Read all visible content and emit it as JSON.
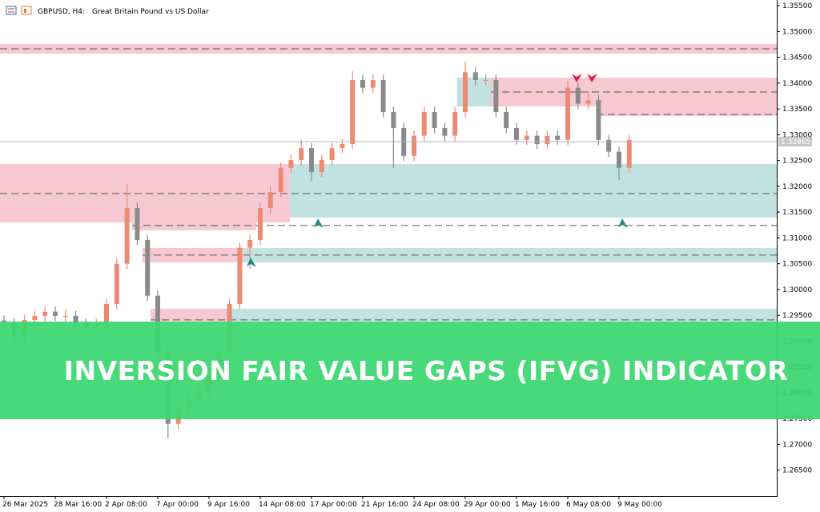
{
  "chart_data": {
    "type": "candlestick",
    "title": "GBPUSD, H4:",
    "subtitle": "Great Britain Pound vs US Dollar",
    "banner": "INVERSION FAIR VALUE GAPS (IFVG) INDICATOR",
    "up_color": "#ee8a74",
    "down_color": "#8a8a8a",
    "bull_zone_color": "#c2e1e1",
    "bear_zone_color": "#f6c8d1",
    "ylim": [
      1.26,
      1.3561
    ],
    "yticks": [
      {
        "value": 1.265,
        "label": "1.26500"
      },
      {
        "value": 1.27,
        "label": "1.27000"
      },
      {
        "value": 1.275,
        "label": "1.27500"
      },
      {
        "value": 1.28,
        "label": "1.28000"
      },
      {
        "value": 1.285,
        "label": "1.28500"
      },
      {
        "value": 1.29,
        "label": "1.29000"
      },
      {
        "value": 1.295,
        "label": "1.29500"
      },
      {
        "value": 1.3,
        "label": "1.30000"
      },
      {
        "value": 1.305,
        "label": "1.30500"
      },
      {
        "value": 1.31,
        "label": "1.31000"
      },
      {
        "value": 1.315,
        "label": "1.31500"
      },
      {
        "value": 1.32,
        "label": "1.32000"
      },
      {
        "value": 1.325,
        "label": "1.32500"
      },
      {
        "value": 1.33,
        "label": "1.33000"
      },
      {
        "value": 1.335,
        "label": "1.33500"
      },
      {
        "value": 1.34,
        "label": "1.34000"
      },
      {
        "value": 1.345,
        "label": "1.34500"
      },
      {
        "value": 1.35,
        "label": "1.35000"
      },
      {
        "value": 1.355,
        "label": "1.35500"
      }
    ],
    "xticks": [
      {
        "value": 0,
        "label": "26 Mar 2025"
      },
      {
        "value": 5,
        "label": "28 Mar 16:00"
      },
      {
        "value": 10,
        "label": "2 Apr 08:00"
      },
      {
        "value": 15,
        "label": "7 Apr 00:00"
      },
      {
        "value": 20,
        "label": "9 Apr 16:00"
      },
      {
        "value": 25,
        "label": "14 Apr 08:00"
      },
      {
        "value": 30,
        "label": "17 Apr 00:00"
      },
      {
        "value": 35,
        "label": "21 Apr 16:00"
      },
      {
        "value": 40,
        "label": "24 Apr 08:00"
      },
      {
        "value": 45,
        "label": "29 Apr 00:00"
      },
      {
        "value": 50,
        "label": "1 May 16:00"
      },
      {
        "value": 55,
        "label": "6 May 08:00"
      },
      {
        "value": 60,
        "label": "9 May 00:00"
      }
    ],
    "last_price": 1.32865,
    "zones": [
      {
        "kind": "bear",
        "top": 1.34757,
        "bottom": 1.34571,
        "from": -0.4
      },
      {
        "kind": "bear",
        "top": 1.34106,
        "bottom": 1.33548,
        "from": 47.5
      },
      {
        "kind": "bull",
        "top": 1.34106,
        "bottom": 1.33548,
        "from": 44.2,
        "to": 47.5
      },
      {
        "kind": "bear",
        "top": 1.33548,
        "bottom": 1.33362,
        "from": 57.8
      },
      {
        "kind": "bear",
        "top": 1.32433,
        "bottom": 1.31302,
        "from": -0.4,
        "to": 27.9
      },
      {
        "kind": "bull",
        "top": 1.32433,
        "bottom": 1.31395,
        "from": 27.9
      },
      {
        "kind": "bear",
        "top": 1.31302,
        "bottom": 1.31147,
        "from": 12.5,
        "to": 24.6
      },
      {
        "kind": "bear",
        "top": 1.30807,
        "bottom": 1.30528,
        "from": 13.5,
        "to": 23.4
      },
      {
        "kind": "bull",
        "top": 1.30807,
        "bottom": 1.30528,
        "from": 23.4
      },
      {
        "kind": "bear",
        "top": 1.29629,
        "bottom": 1.29381,
        "from": 14.3,
        "to": 21.9
      },
      {
        "kind": "bull",
        "top": 1.29629,
        "bottom": 1.29381,
        "from": 21.9
      }
    ],
    "levels": [
      {
        "price": 1.34664,
        "from": -0.4
      },
      {
        "price": 1.33827,
        "from": 47.5
      },
      {
        "price": 1.33393,
        "from": 57.8
      },
      {
        "price": 1.3186,
        "from": -0.4
      },
      {
        "price": 1.3124,
        "from": 12.5
      },
      {
        "price": 1.30667,
        "from": 13.5
      },
      {
        "price": 1.29412,
        "from": 14.3
      }
    ],
    "candles": [
      {
        "open": 1.294,
        "high": 1.295,
        "low": 1.2924,
        "close": 1.2934
      },
      {
        "open": 1.2934,
        "high": 1.2944,
        "low": 1.29,
        "close": 1.291
      },
      {
        "open": 1.291,
        "high": 1.2951,
        "low": 1.29,
        "close": 1.2941
      },
      {
        "open": 1.2941,
        "high": 1.2959,
        "low": 1.2931,
        "close": 1.2949
      },
      {
        "open": 1.2949,
        "high": 1.2967,
        "low": 1.2939,
        "close": 1.2957
      },
      {
        "open": 1.2957,
        "high": 1.2967,
        "low": 1.2939,
        "close": 1.2949
      },
      {
        "open": 1.2949,
        "high": 1.2962,
        "low": 1.2938,
        "close": 1.2949
      },
      {
        "open": 1.2949,
        "high": 1.2959,
        "low": 1.2924,
        "close": 1.2934
      },
      {
        "open": 1.2934,
        "high": 1.2944,
        "low": 1.2916,
        "close": 1.2926
      },
      {
        "open": 1.2926,
        "high": 1.2944,
        "low": 1.2916,
        "close": 1.2934
      },
      {
        "open": 1.2934,
        "high": 1.2982,
        "low": 1.2924,
        "close": 1.2972
      },
      {
        "open": 1.2972,
        "high": 1.306,
        "low": 1.2962,
        "close": 1.305
      },
      {
        "open": 1.305,
        "high": 1.3205,
        "low": 1.304,
        "close": 1.3158
      },
      {
        "open": 1.3158,
        "high": 1.3168,
        "low": 1.3086,
        "close": 1.3096
      },
      {
        "open": 1.3096,
        "high": 1.3106,
        "low": 1.2978,
        "close": 1.2988
      },
      {
        "open": 1.2988,
        "high": 1.2998,
        "low": 1.2869,
        "close": 1.2879
      },
      {
        "open": 1.2879,
        "high": 1.2889,
        "low": 1.2712,
        "close": 1.274
      },
      {
        "open": 1.274,
        "high": 1.2781,
        "low": 1.273,
        "close": 1.2771
      },
      {
        "open": 1.2771,
        "high": 1.2796,
        "low": 1.2761,
        "close": 1.2786
      },
      {
        "open": 1.2786,
        "high": 1.2812,
        "low": 1.2776,
        "close": 1.2802
      },
      {
        "open": 1.2802,
        "high": 1.2843,
        "low": 1.2792,
        "close": 1.2833
      },
      {
        "open": 1.2833,
        "high": 1.2889,
        "low": 1.2823,
        "close": 1.2879
      },
      {
        "open": 1.2879,
        "high": 1.2982,
        "low": 1.2869,
        "close": 1.2972
      },
      {
        "open": 1.2972,
        "high": 1.3091,
        "low": 1.2962,
        "close": 1.3081
      },
      {
        "open": 1.3081,
        "high": 1.3106,
        "low": 1.304,
        "close": 1.3096
      },
      {
        "open": 1.3096,
        "high": 1.3168,
        "low": 1.3086,
        "close": 1.3158
      },
      {
        "open": 1.3158,
        "high": 1.3199,
        "low": 1.3148,
        "close": 1.3189
      },
      {
        "open": 1.3189,
        "high": 1.3246,
        "low": 1.3179,
        "close": 1.3236
      },
      {
        "open": 1.3236,
        "high": 1.3261,
        "low": 1.3226,
        "close": 1.3251
      },
      {
        "open": 1.3251,
        "high": 1.329,
        "low": 1.3241,
        "close": 1.3274
      },
      {
        "open": 1.3274,
        "high": 1.3284,
        "low": 1.321,
        "close": 1.3228
      },
      {
        "open": 1.3228,
        "high": 1.3261,
        "low": 1.3218,
        "close": 1.3251
      },
      {
        "open": 1.3251,
        "high": 1.3284,
        "low": 1.3241,
        "close": 1.3274
      },
      {
        "open": 1.3274,
        "high": 1.3292,
        "low": 1.3264,
        "close": 1.3282
      },
      {
        "open": 1.3282,
        "high": 1.3423,
        "low": 1.3272,
        "close": 1.3406
      },
      {
        "open": 1.3406,
        "high": 1.3416,
        "low": 1.3381,
        "close": 1.3391
      },
      {
        "open": 1.3391,
        "high": 1.3418,
        "low": 1.3381,
        "close": 1.3406
      },
      {
        "open": 1.3406,
        "high": 1.3416,
        "low": 1.3334,
        "close": 1.3344
      },
      {
        "open": 1.3344,
        "high": 1.3354,
        "low": 1.3236,
        "close": 1.3313
      },
      {
        "open": 1.3313,
        "high": 1.3323,
        "low": 1.3249,
        "close": 1.3259
      },
      {
        "open": 1.3259,
        "high": 1.3308,
        "low": 1.3249,
        "close": 1.3298
      },
      {
        "open": 1.3298,
        "high": 1.3354,
        "low": 1.3288,
        "close": 1.3344
      },
      {
        "open": 1.3344,
        "high": 1.3354,
        "low": 1.3303,
        "close": 1.3313
      },
      {
        "open": 1.3313,
        "high": 1.3323,
        "low": 1.3288,
        "close": 1.3298
      },
      {
        "open": 1.3298,
        "high": 1.3354,
        "low": 1.3288,
        "close": 1.3344
      },
      {
        "open": 1.3344,
        "high": 1.3442,
        "low": 1.3334,
        "close": 1.3421
      },
      {
        "open": 1.3421,
        "high": 1.3431,
        "low": 1.3396,
        "close": 1.3406
      },
      {
        "open": 1.3406,
        "high": 1.3416,
        "low": 1.3396,
        "close": 1.3406
      },
      {
        "open": 1.3406,
        "high": 1.3416,
        "low": 1.3334,
        "close": 1.3344
      },
      {
        "open": 1.3344,
        "high": 1.3354,
        "low": 1.3303,
        "close": 1.3313
      },
      {
        "open": 1.3313,
        "high": 1.3323,
        "low": 1.328,
        "close": 1.329
      },
      {
        "open": 1.329,
        "high": 1.3308,
        "low": 1.328,
        "close": 1.3298
      },
      {
        "open": 1.3298,
        "high": 1.3308,
        "low": 1.3272,
        "close": 1.3282
      },
      {
        "open": 1.3282,
        "high": 1.3308,
        "low": 1.3272,
        "close": 1.3298
      },
      {
        "open": 1.3298,
        "high": 1.3308,
        "low": 1.328,
        "close": 1.329
      },
      {
        "open": 1.329,
        "high": 1.3405,
        "low": 1.328,
        "close": 1.3391
      },
      {
        "open": 1.3391,
        "high": 1.3401,
        "low": 1.335,
        "close": 1.336
      },
      {
        "open": 1.336,
        "high": 1.3385,
        "low": 1.335,
        "close": 1.3367
      },
      {
        "open": 1.3367,
        "high": 1.3377,
        "low": 1.328,
        "close": 1.329
      },
      {
        "open": 1.329,
        "high": 1.33,
        "low": 1.3257,
        "close": 1.3267
      },
      {
        "open": 1.3267,
        "high": 1.3277,
        "low": 1.3212,
        "close": 1.3236
      },
      {
        "open": 1.3236,
        "high": 1.33,
        "low": 1.3226,
        "close": 1.329
      }
    ]
  }
}
